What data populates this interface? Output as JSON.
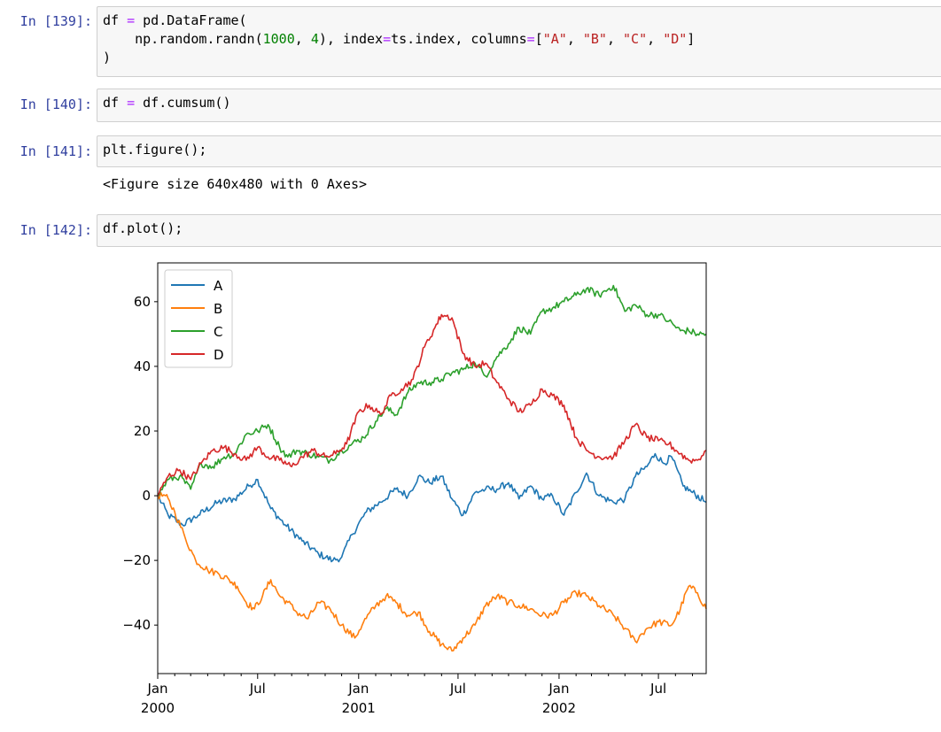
{
  "cells": [
    {
      "prompt": "In [139]:",
      "code_lines": [
        [
          [
            "df",
            ""
          ],
          [
            " ",
            ""
          ],
          [
            "=",
            "op"
          ],
          [
            " pd.DataFrame(",
            ""
          ]
        ],
        [
          [
            "    np.random.randn(",
            ""
          ],
          [
            "1000",
            "num"
          ],
          [
            ", ",
            ""
          ],
          [
            "4",
            "num"
          ],
          [
            "), index",
            ""
          ],
          [
            "=",
            "op"
          ],
          [
            "ts.index, columns",
            ""
          ],
          [
            "=",
            "op"
          ],
          [
            "[",
            ""
          ],
          [
            "\"A\"",
            "str"
          ],
          [
            ", ",
            ""
          ],
          [
            "\"B\"",
            "str"
          ],
          [
            ", ",
            ""
          ],
          [
            "\"C\"",
            "str"
          ],
          [
            ", ",
            ""
          ],
          [
            "\"D\"",
            "str"
          ],
          [
            "]",
            ""
          ]
        ],
        [
          [
            ")",
            ""
          ]
        ]
      ]
    },
    {
      "prompt": "In [140]:",
      "code_lines": [
        [
          [
            "df",
            ""
          ],
          [
            " ",
            ""
          ],
          [
            "=",
            "op"
          ],
          [
            " df.cumsum()",
            ""
          ]
        ]
      ]
    },
    {
      "prompt": "In [141]:",
      "code_lines": [
        [
          [
            "plt.figure();",
            ""
          ]
        ]
      ],
      "output": "<Figure size 640x480 with 0 Axes>"
    },
    {
      "prompt": "In [142]:",
      "code_lines": [
        [
          [
            "df.plot();",
            ""
          ]
        ]
      ]
    }
  ],
  "chart_data": {
    "type": "line",
    "x_type": "date",
    "xlim": [
      "2000-01-01",
      "2002-09-26"
    ],
    "ylim": [
      -55,
      72
    ],
    "yticks": [
      -40,
      -20,
      0,
      20,
      40,
      60
    ],
    "ytick_labels": [
      "−40",
      "−20",
      "0",
      "20",
      "40",
      "60"
    ],
    "xticks": [
      {
        "date": "2000-01-01",
        "label": [
          "Jan",
          "2000"
        ]
      },
      {
        "date": "2000-07-01",
        "label": [
          "Jul"
        ]
      },
      {
        "date": "2001-01-01",
        "label": [
          "Jan",
          "2001"
        ]
      },
      {
        "date": "2001-07-01",
        "label": [
          "Jul"
        ]
      },
      {
        "date": "2002-01-01",
        "label": [
          "Jan",
          "2002"
        ]
      },
      {
        "date": "2002-07-01",
        "label": [
          "Jul"
        ]
      }
    ],
    "legend_placement": "top-left",
    "grid": false,
    "series": [
      {
        "name": "A",
        "color": "#1f77b4",
        "x": [
          "2000-01-01",
          "2000-01-20",
          "2000-02-15",
          "2000-03-15",
          "2000-04-20",
          "2000-05-20",
          "2000-06-15",
          "2000-07-01",
          "2000-07-25",
          "2000-08-20",
          "2000-09-20",
          "2000-10-20",
          "2000-11-15",
          "2000-12-01",
          "2000-12-20",
          "2001-01-15",
          "2001-02-10",
          "2001-03-10",
          "2001-04-01",
          "2001-04-20",
          "2001-05-10",
          "2001-06-01",
          "2001-06-20",
          "2001-07-10",
          "2001-08-01",
          "2001-08-20",
          "2001-09-10",
          "2001-10-01",
          "2001-10-20",
          "2001-11-10",
          "2001-12-01",
          "2001-12-20",
          "2002-01-10",
          "2002-02-01",
          "2002-02-20",
          "2002-03-15",
          "2002-04-10",
          "2002-05-01",
          "2002-05-20",
          "2002-06-10",
          "2002-06-25",
          "2002-07-10",
          "2002-07-25",
          "2002-08-15",
          "2002-09-01",
          "2002-09-26"
        ],
        "values": [
          0,
          -6,
          -9,
          -6,
          -2,
          -1,
          3,
          5,
          -4,
          -9,
          -14,
          -18,
          -20,
          -19,
          -12,
          -5,
          -2,
          2,
          0,
          6,
          4,
          6,
          -1,
          -6,
          1,
          2,
          2,
          4,
          -1,
          3,
          -1,
          0,
          -6,
          1,
          7,
          0,
          -2,
          -1,
          6,
          9,
          13,
          10,
          12,
          3,
          1,
          -2
        ]
      },
      {
        "name": "B",
        "color": "#ff7f0e",
        "x": [
          "2000-01-01",
          "2000-01-15",
          "2000-02-01",
          "2000-02-20",
          "2000-03-10",
          "2000-04-01",
          "2000-04-20",
          "2000-05-10",
          "2000-05-25",
          "2000-06-10",
          "2000-06-25",
          "2000-07-10",
          "2000-07-25",
          "2000-08-10",
          "2000-08-25",
          "2000-09-10",
          "2000-10-01",
          "2000-10-20",
          "2000-11-10",
          "2000-12-01",
          "2000-12-25",
          "2001-01-10",
          "2001-02-01",
          "2001-02-20",
          "2001-03-10",
          "2001-04-01",
          "2001-04-20",
          "2001-05-10",
          "2001-06-01",
          "2001-06-20",
          "2001-07-10",
          "2001-08-01",
          "2001-08-20",
          "2001-09-10",
          "2001-10-01",
          "2001-10-20",
          "2001-11-10",
          "2001-12-01",
          "2001-12-20",
          "2002-01-10",
          "2002-02-01",
          "2002-02-20",
          "2002-03-15",
          "2002-04-10",
          "2002-05-01",
          "2002-05-20",
          "2002-06-10",
          "2002-07-01",
          "2002-07-25",
          "2002-08-10",
          "2002-08-25",
          "2002-09-10",
          "2002-09-26"
        ],
        "values": [
          0,
          0,
          -5,
          -13,
          -20,
          -23,
          -24,
          -26,
          -28,
          -33,
          -35,
          -31,
          -26,
          -31,
          -33,
          -36,
          -38,
          -33,
          -35,
          -40,
          -44,
          -39,
          -34,
          -31,
          -33,
          -37,
          -36,
          -42,
          -46,
          -48,
          -44,
          -40,
          -34,
          -31,
          -33,
          -34,
          -35,
          -37,
          -37,
          -33,
          -30,
          -31,
          -34,
          -37,
          -41,
          -45,
          -41,
          -39,
          -40,
          -35,
          -28,
          -30,
          -35
        ]
      },
      {
        "name": "C",
        "color": "#2ca02c",
        "x": [
          "2000-01-01",
          "2000-01-20",
          "2000-02-10",
          "2000-03-01",
          "2000-03-20",
          "2000-04-10",
          "2000-05-01",
          "2000-05-20",
          "2000-06-10",
          "2000-07-01",
          "2000-07-20",
          "2000-08-10",
          "2000-08-25",
          "2000-09-10",
          "2000-10-01",
          "2000-10-20",
          "2000-11-10",
          "2000-12-01",
          "2000-12-20",
          "2001-01-10",
          "2001-02-01",
          "2001-02-20",
          "2001-03-10",
          "2001-04-01",
          "2001-04-20",
          "2001-05-10",
          "2001-06-01",
          "2001-06-20",
          "2001-07-10",
          "2001-08-01",
          "2001-08-20",
          "2001-09-10",
          "2001-10-01",
          "2001-10-20",
          "2001-11-10",
          "2001-12-01",
          "2001-12-20",
          "2002-01-10",
          "2002-02-01",
          "2002-02-20",
          "2002-03-15",
          "2002-04-10",
          "2002-05-01",
          "2002-05-20",
          "2002-06-10",
          "2002-07-01",
          "2002-07-20",
          "2002-08-10",
          "2002-08-25",
          "2002-09-10",
          "2002-09-26"
        ],
        "values": [
          0,
          5,
          6,
          2,
          10,
          9,
          12,
          13,
          19,
          20,
          22,
          15,
          12,
          14,
          13,
          12,
          11,
          14,
          16,
          18,
          23,
          27,
          25,
          32,
          35,
          35,
          36,
          38,
          39,
          41,
          37,
          43,
          47,
          52,
          50,
          57,
          58,
          60,
          62,
          64,
          62,
          65,
          57,
          59,
          56,
          56,
          54,
          51,
          51,
          50,
          50
        ]
      },
      {
        "name": "D",
        "color": "#d62728",
        "x": [
          "2000-01-01",
          "2000-01-20",
          "2000-02-10",
          "2000-03-01",
          "2000-03-20",
          "2000-04-10",
          "2000-05-01",
          "2000-05-20",
          "2000-06-10",
          "2000-07-01",
          "2000-07-20",
          "2000-08-10",
          "2000-09-01",
          "2000-09-20",
          "2000-10-10",
          "2000-11-01",
          "2000-11-20",
          "2000-12-10",
          "2001-01-01",
          "2001-01-20",
          "2001-02-10",
          "2001-03-01",
          "2001-03-20",
          "2001-04-10",
          "2001-05-01",
          "2001-05-20",
          "2001-06-01",
          "2001-06-20",
          "2001-07-10",
          "2001-08-01",
          "2001-08-20",
          "2001-09-10",
          "2001-10-01",
          "2001-10-20",
          "2001-11-10",
          "2001-12-01",
          "2001-12-20",
          "2002-01-10",
          "2002-02-01",
          "2002-02-20",
          "2002-03-15",
          "2002-04-10",
          "2002-05-01",
          "2002-05-20",
          "2002-06-10",
          "2002-07-01",
          "2002-07-20",
          "2002-08-10",
          "2002-08-25",
          "2002-09-10",
          "2002-09-26"
        ],
        "values": [
          0,
          6,
          8,
          5,
          10,
          14,
          15,
          13,
          11,
          15,
          12,
          11,
          9,
          12,
          14,
          12,
          13,
          16,
          26,
          28,
          25,
          31,
          33,
          36,
          46,
          52,
          56,
          55,
          44,
          40,
          41,
          35,
          30,
          26,
          28,
          33,
          31,
          28,
          18,
          14,
          12,
          12,
          17,
          22,
          18,
          17,
          16,
          13,
          11,
          11,
          14
        ]
      }
    ]
  }
}
